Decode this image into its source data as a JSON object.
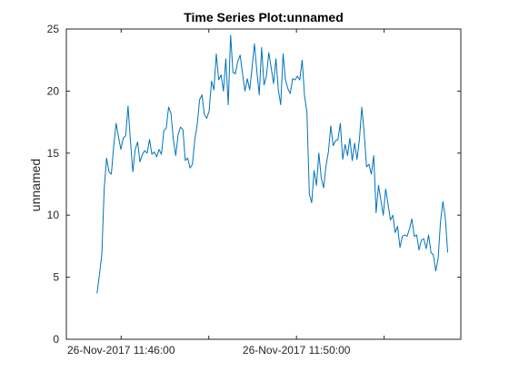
{
  "chart_data": {
    "type": "line",
    "title": "Time Series Plot:unnamed",
    "xlabel": "",
    "ylabel": "unnamed",
    "ylim": [
      0,
      25
    ],
    "yticks": [
      0,
      5,
      10,
      15,
      20,
      25
    ],
    "xlim_minutes": [
      -1.25,
      7.75
    ],
    "xticks_minutes": [
      0,
      2,
      4,
      6
    ],
    "xtick_labels": [
      "26-Nov-2017 11:46:00",
      "",
      "26-Nov-2017 11:50:00",
      ""
    ],
    "grid": false,
    "line_color": "#0072BD",
    "series": [
      {
        "values": [
          3.7,
          5.2,
          6.8,
          12.1,
          14.6,
          13.5,
          13.3,
          15.6,
          17.4,
          16.3,
          15.3,
          16.2,
          16.4,
          18.8,
          16.0,
          13.5,
          15.3,
          15.9,
          14.3,
          14.9,
          15.2,
          15.0,
          16.1,
          14.9,
          15.1,
          14.7,
          15.3,
          14.9,
          16.8,
          17.0,
          18.7,
          18.2,
          16.1,
          14.8,
          16.5,
          17.1,
          16.9,
          14.4,
          14.6,
          13.8,
          14.1,
          16.1,
          17.3,
          19.3,
          19.7,
          18.1,
          17.8,
          18.4,
          20.8,
          20.1,
          23.0,
          20.9,
          21.3,
          20.0,
          22.6,
          18.9,
          24.5,
          21.5,
          21.4,
          22.4,
          22.9,
          21.4,
          20.0,
          21.0,
          20.1,
          21.9,
          23.8,
          21.6,
          19.7,
          23.5,
          20.5,
          21.2,
          23.1,
          21.9,
          20.6,
          22.6,
          20.1,
          18.9,
          23.0,
          20.9,
          20.2,
          19.8,
          21.0,
          20.9,
          21.2,
          20.9,
          22.5,
          19.6,
          18.3,
          11.7,
          11.0,
          13.6,
          12.4,
          15.0,
          13.0,
          12.2,
          14.0,
          15.1,
          17.2,
          15.6,
          16.0,
          16.1,
          17.4,
          14.5,
          15.7,
          14.8,
          16.2,
          14.4,
          15.8,
          14.5,
          16.1,
          18.7,
          16.6,
          13.9,
          14.1,
          13.3,
          14.8,
          10.2,
          12.4,
          11.2,
          10.0,
          12.1,
          10.9,
          9.6,
          10.0,
          8.6,
          9.1,
          7.4,
          8.3,
          8.4,
          8.3,
          8.9,
          9.7,
          8.3,
          8.4,
          7.2,
          8.0,
          8.1,
          7.3,
          8.4,
          7.0,
          6.8,
          5.5,
          6.5,
          9.5,
          11.1,
          9.8,
          7.0
        ]
      }
    ]
  }
}
